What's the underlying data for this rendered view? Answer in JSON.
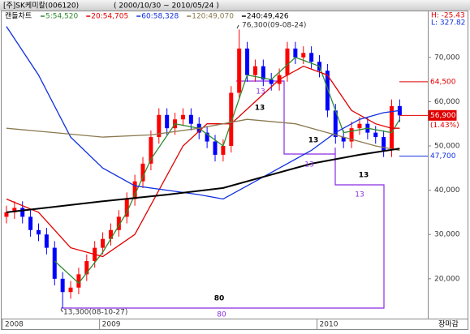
{
  "chart_data": {
    "type": "candlestick",
    "title": "[주]SK케미칼(006120)",
    "subtitle": "( 2000/10/30 ~ 2010/05/24 )",
    "chart_label": "캔들차트",
    "stats": [
      "H: -25.43",
      "L: 327.82"
    ],
    "footer": "장마감",
    "categories": [
      null,
      null,
      null,
      null,
      null,
      null,
      null,
      null,
      null,
      null,
      null,
      null,
      null,
      null,
      null,
      null,
      null,
      null,
      null,
      null,
      null,
      null,
      null,
      null,
      null,
      null,
      null,
      null,
      null,
      null,
      null,
      null,
      null,
      null,
      null,
      null,
      null,
      null,
      null,
      null,
      null,
      null,
      null,
      null,
      null,
      null,
      null,
      null,
      null,
      null
    ],
    "open": [
      34000,
      35000,
      36000,
      34000,
      31000,
      30000,
      27000,
      20000,
      17000,
      18000,
      21000,
      24000,
      27000,
      29000,
      31000,
      34000,
      38000,
      42000,
      46000,
      52000,
      57000,
      54000,
      56000,
      57000,
      55000,
      53000,
      51000,
      48000,
      50000,
      62000,
      72000,
      66000,
      68000,
      65000,
      64000,
      66000,
      72000,
      70000,
      71000,
      69000,
      67000,
      58000,
      52000,
      51000,
      54000,
      55000,
      53000,
      52000,
      49000,
      59000
    ],
    "high": [
      36500,
      37500,
      37500,
      35500,
      32500,
      31500,
      28500,
      21500,
      19500,
      22500,
      25500,
      28500,
      30500,
      32500,
      35500,
      39500,
      43500,
      47500,
      53500,
      58500,
      58500,
      57500,
      58500,
      58500,
      56500,
      54500,
      52500,
      51500,
      63500,
      76300,
      73500,
      69500,
      69500,
      66500,
      67500,
      73500,
      73500,
      72500,
      72500,
      70500,
      68500,
      59500,
      53500,
      55500,
      56500,
      56500,
      54500,
      53500,
      60500,
      60500
    ],
    "low": [
      32500,
      33500,
      32500,
      29500,
      28500,
      25500,
      18500,
      13300,
      15500,
      16500,
      19500,
      22500,
      25500,
      27500,
      29500,
      32500,
      36500,
      40500,
      44500,
      50500,
      52500,
      52500,
      54500,
      53500,
      51500,
      49500,
      46500,
      46500,
      48500,
      60500,
      64500,
      64500,
      63500,
      62500,
      62500,
      64500,
      68500,
      68500,
      67500,
      65500,
      56500,
      50500,
      49500,
      49500,
      52500,
      51500,
      50500,
      47500,
      47500,
      55400
    ],
    "close": [
      35000,
      36000,
      34000,
      31000,
      30000,
      27000,
      20000,
      17000,
      18000,
      21000,
      24000,
      27000,
      29000,
      31000,
      34000,
      38000,
      42000,
      46000,
      52000,
      57000,
      54000,
      56000,
      57000,
      55000,
      53000,
      51000,
      48000,
      50000,
      62000,
      72000,
      66000,
      68000,
      65000,
      64000,
      66000,
      72000,
      70000,
      71000,
      69000,
      67000,
      58000,
      52000,
      51000,
      54000,
      55000,
      53000,
      52000,
      49000,
      59000,
      56900
    ],
    "up_color": "#ff0000",
    "down_color": "#0000ff",
    "series": [
      {
        "name": "5:54,520",
        "color": "#2e8b2e",
        "x": [
          6,
          9,
          12,
          15,
          18,
          21,
          24,
          27,
          30,
          33,
          36,
          39,
          42,
          45,
          48,
          49
        ],
        "values": [
          24000,
          19000,
          26000,
          35000,
          47000,
          55000,
          54000,
          50000,
          66000,
          65000,
          70000,
          68000,
          53000,
          54000,
          53000,
          56000
        ]
      },
      {
        "name": "20:54,705",
        "color": "#e00000",
        "x": [
          0,
          4,
          8,
          12,
          16,
          19,
          22,
          25,
          28,
          31,
          34,
          37,
          40,
          43,
          46,
          48,
          49
        ],
        "values": [
          38000,
          35000,
          27000,
          25000,
          30000,
          40000,
          50000,
          55000,
          55000,
          60000,
          65000,
          68000,
          66000,
          58000,
          55000,
          54000,
          54000
        ]
      },
      {
        "name": "60:58,328",
        "color": "#1030e0",
        "x": [
          0,
          4,
          8,
          12,
          16,
          20,
          24,
          27,
          30,
          34,
          38,
          41,
          44,
          47,
          49
        ],
        "values": [
          77000,
          66000,
          52000,
          45000,
          41000,
          40000,
          39000,
          38000,
          41000,
          45000,
          49000,
          53000,
          56000,
          57500,
          58000
        ]
      },
      {
        "name": "120:49,070",
        "color": "#8a7a50",
        "x": [
          0,
          6,
          12,
          18,
          24,
          30,
          36,
          42,
          46,
          49
        ],
        "values": [
          54000,
          53000,
          52000,
          52500,
          54000,
          56000,
          55000,
          52000,
          50000,
          49000
        ]
      },
      {
        "name": "240:49,426",
        "color": "#000000",
        "x": [
          0,
          12,
          20,
          27,
          32,
          38,
          44,
          49
        ],
        "values": [
          35000,
          37500,
          39000,
          40500,
          43000,
          46000,
          48000,
          49400
        ]
      }
    ],
    "xlim": [
      -0.5,
      52.5
    ],
    "xticks": [
      {
        "value": -0.5,
        "label": "2008"
      },
      {
        "value": 11.6,
        "label": "2009"
      },
      {
        "value": 38.7,
        "label": "2010"
      }
    ],
    "ylim": [
      11000,
      78200
    ],
    "yticks": [
      {
        "value": 20000,
        "label": "20,000"
      },
      {
        "value": 30000,
        "label": "30,000"
      },
      {
        "value": 40000,
        "label": "40,000"
      },
      {
        "value": 50000,
        "label": "50,000"
      },
      {
        "value": 60000,
        "label": "60,000"
      },
      {
        "value": 70000,
        "label": "70,000"
      }
    ],
    "annotations": [
      "76,300(09-08-24)",
      "13,300(08-10-27)",
      "13",
      "13",
      "13",
      "80",
      "13",
      "13",
      "13",
      "80"
    ],
    "price_tags": [
      {
        "label": "64,500",
        "value": 64500
      },
      {
        "label": "56,900",
        "value": 56900
      },
      {
        "label": "47,700",
        "value": 47700
      }
    ],
    "change": "(1.43%)"
  }
}
